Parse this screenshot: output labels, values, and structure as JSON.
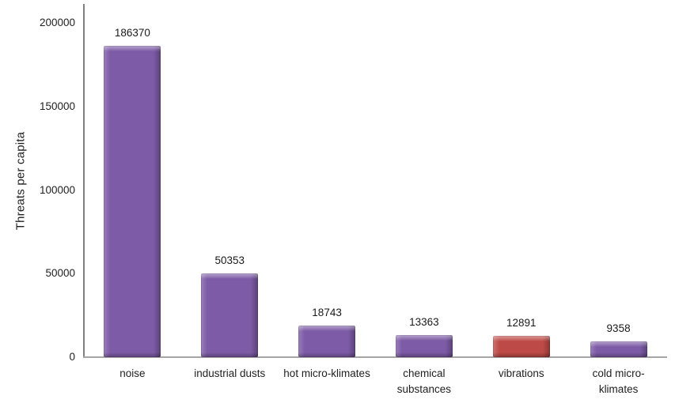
{
  "chart_data": {
    "type": "bar",
    "title": "",
    "xlabel": "",
    "ylabel": "Threats per capita",
    "categories": [
      "noise",
      "industrial dusts",
      "hot micro-klimates",
      "chemical substances",
      "vibrations",
      "cold micro-klimates"
    ],
    "category_display_lines": [
      [
        "noise"
      ],
      [
        "industrial dusts"
      ],
      [
        "hot micro-klimates"
      ],
      [
        "chemical",
        "substances"
      ],
      [
        "vibrations"
      ],
      [
        "cold micro-",
        "klimates"
      ]
    ],
    "values": [
      186370,
      50353,
      18743,
      13363,
      12891,
      9358
    ],
    "value_labels": [
      "186370",
      "50353",
      "18743",
      "13363",
      "12891",
      "9358"
    ],
    "bar_colors": [
      "#7d5ba6",
      "#7d5ba6",
      "#7d5ba6",
      "#7d5ba6",
      "#be4a47",
      "#7d5ba6"
    ],
    "ylim": [
      0,
      200000
    ],
    "yticks": [
      0,
      50000,
      100000,
      150000,
      200000
    ],
    "ytick_labels": [
      "0",
      "50000",
      "100000",
      "150000",
      "200000"
    ],
    "grid": false,
    "legend": false,
    "data_labels": "outside-end",
    "colors": {
      "series_default": "#7d5ba6",
      "series_highlight": "#be4a47",
      "y_axis_line": "#7f7f7f",
      "x_axis_line": "#a6a6a6",
      "text": "#1f1f1f",
      "background": "#ffffff"
    }
  }
}
